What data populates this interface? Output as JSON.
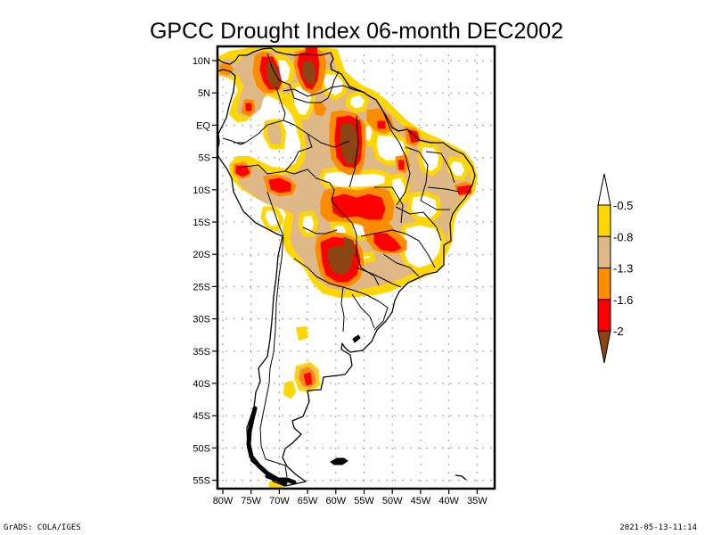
{
  "title": "GPCC Drought Index 06-month DEC2002",
  "chart_data": {
    "type": "heatmap",
    "title": "GPCC Drought Index 06-month DEC2002",
    "xlabel": "",
    "ylabel": "",
    "lat_range": [
      -56,
      12
    ],
    "lon_range": [
      -81,
      -32
    ],
    "grid": true,
    "lat_ticks": [
      {
        "label": "10N",
        "value": 10
      },
      {
        "label": "5N",
        "value": 5
      },
      {
        "label": "EQ",
        "value": 0
      },
      {
        "label": "5S",
        "value": -5
      },
      {
        "label": "10S",
        "value": -10
      },
      {
        "label": "15S",
        "value": -15
      },
      {
        "label": "20S",
        "value": -20
      },
      {
        "label": "25S",
        "value": -25
      },
      {
        "label": "30S",
        "value": -30
      },
      {
        "label": "35S",
        "value": -35
      },
      {
        "label": "40S",
        "value": -40
      },
      {
        "label": "45S",
        "value": -45
      },
      {
        "label": "50S",
        "value": -50
      },
      {
        "label": "55S",
        "value": -55
      }
    ],
    "lon_ticks": [
      {
        "label": "80W",
        "value": -80
      },
      {
        "label": "75W",
        "value": -75
      },
      {
        "label": "70W",
        "value": -70
      },
      {
        "label": "65W",
        "value": -65
      },
      {
        "label": "60W",
        "value": -60
      },
      {
        "label": "55W",
        "value": -55
      },
      {
        "label": "50W",
        "value": -50
      },
      {
        "label": "45W",
        "value": -45
      },
      {
        "label": "40W",
        "value": -40
      },
      {
        "label": "35W",
        "value": -35
      }
    ],
    "legend": {
      "placement": "right",
      "levels": [
        "-0.5",
        "-0.8",
        "-1.3",
        "-1.6",
        "-2"
      ],
      "bins": [
        {
          "range": "> -0.5",
          "color": "#ffffff"
        },
        {
          "range": "-0.8 to -0.5",
          "color": "#ffd700"
        },
        {
          "range": "-1.3 to -0.8",
          "color": "#deb887"
        },
        {
          "range": "-1.6 to -1.3",
          "color": "#ff8c00"
        },
        {
          "range": "-2 to -1.6",
          "color": "#ff0000"
        },
        {
          "range": "< -2",
          "color": "#8b4513"
        }
      ]
    }
  },
  "footer": {
    "left": "GrADS: COLA/IGES",
    "right": "2021-05-13-11:14"
  }
}
